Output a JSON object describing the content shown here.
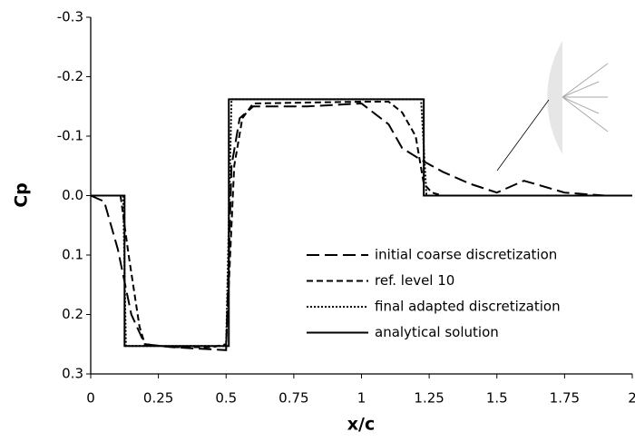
{
  "chart_data": {
    "type": "line",
    "xlabel": "x/c",
    "ylabel": "Cp",
    "xlim": [
      0,
      2
    ],
    "ylim": [
      0.3,
      -0.3
    ],
    "xticks": [
      0,
      0.25,
      0.5,
      0.75,
      1,
      1.25,
      1.5,
      1.75,
      2
    ],
    "yticks": [
      -0.3,
      -0.2,
      -0.1,
      {
        "value": 0,
        "label": "0.0"
      },
      0.1,
      0.2,
      0.3
    ],
    "series": [
      {
        "name": "initial coarse discretization",
        "color": "#000000",
        "dash": "long",
        "x": [
          0,
          0.05,
          0.1,
          0.15,
          0.2,
          0.3,
          0.5,
          0.52,
          0.55,
          0.6,
          0.8,
          1.0,
          1.1,
          1.15,
          1.22,
          1.3,
          1.4,
          1.5,
          1.6,
          1.75,
          1.9,
          2
        ],
        "values": [
          0,
          0.01,
          0.09,
          0.2,
          0.25,
          0.255,
          0.26,
          -0.05,
          -0.13,
          -0.15,
          -0.15,
          -0.155,
          -0.12,
          -0.08,
          -0.06,
          -0.04,
          -0.02,
          -0.005,
          -0.025,
          -0.005,
          0,
          0
        ]
      },
      {
        "name": "ref. level 10",
        "color": "#000000",
        "dash": "short",
        "x": [
          0,
          0.11,
          0.14,
          0.18,
          0.2,
          0.3,
          0.45,
          0.5,
          0.53,
          0.56,
          0.6,
          1.0,
          1.1,
          1.15,
          1.2,
          1.23,
          1.26,
          1.3,
          1.4,
          2
        ],
        "values": [
          0,
          0,
          0.1,
          0.22,
          0.25,
          0.255,
          0.255,
          0.25,
          -0.05,
          -0.13,
          -0.155,
          -0.158,
          -0.158,
          -0.14,
          -0.1,
          -0.02,
          -0.005,
          0,
          0,
          0
        ]
      },
      {
        "name": "final adapted discretization",
        "color": "#000000",
        "dash": "dotted",
        "x": [
          0,
          0.12,
          0.13,
          0.5,
          0.52,
          1.22,
          1.24,
          2
        ],
        "values": [
          0,
          0,
          0.253,
          0.253,
          -0.162,
          -0.162,
          0,
          0
        ]
      },
      {
        "name": "analytical solution",
        "color": "#000000",
        "dash": "solid",
        "x": [
          0,
          0.125,
          0.125,
          0.51,
          0.51,
          1.23,
          1.23,
          2
        ],
        "values": [
          0,
          0,
          0.253,
          0.253,
          -0.162,
          -0.162,
          0,
          0
        ]
      }
    ]
  }
}
